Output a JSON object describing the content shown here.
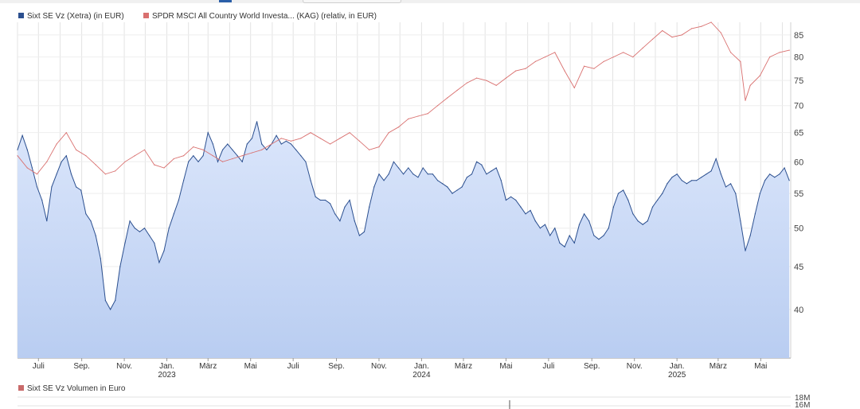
{
  "legend": {
    "series1": "Sixt SE Vz (Xetra) (in EUR)",
    "series2": "SPDR MSCI All Country World Investa... (KAG) (relativ, in EUR)",
    "volume": "Sixt SE Vz Volumen in Euro"
  },
  "colors": {
    "series1_line": "#2b4f8f",
    "series1_fill_top": "#bcd0f3",
    "series1_fill_bottom": "#dfe8fb",
    "series2_line": "#d9706f",
    "volume_swatch": "#c96a6a",
    "grid": "#e3e3e3"
  },
  "volume_axis": {
    "ticks": [
      "18M",
      "16M"
    ]
  },
  "chart_data": {
    "type": "line",
    "x_axis": {
      "month_labels": [
        "Juli",
        "Sep.",
        "Nov.",
        "Jan.",
        "März",
        "Mai",
        "Juli",
        "Sep.",
        "Nov.",
        "Jan.",
        "März",
        "Mai",
        "Juli",
        "Sep.",
        "Nov.",
        "Jan.",
        "März",
        "Mai"
      ],
      "year_labels": [
        "2023",
        "2024",
        "2025"
      ],
      "range": [
        "2022-06",
        "2025-06"
      ]
    },
    "y_axis": {
      "ticks": [
        40,
        45,
        50,
        55,
        60,
        65,
        70,
        75,
        80,
        85
      ],
      "ylim": [
        35,
        88
      ],
      "side": "right",
      "scale": "log"
    },
    "grid": true,
    "series": [
      {
        "name": "Sixt SE Vz (Xetra) (in EUR)",
        "style": "area",
        "points": [
          [
            "2022-06-01",
            62
          ],
          [
            "2022-06-08",
            64.5
          ],
          [
            "2022-06-15",
            62
          ],
          [
            "2022-06-22",
            59
          ],
          [
            "2022-06-29",
            56
          ],
          [
            "2022-07-06",
            54
          ],
          [
            "2022-07-13",
            51
          ],
          [
            "2022-07-20",
            56
          ],
          [
            "2022-07-27",
            58
          ],
          [
            "2022-08-03",
            60
          ],
          [
            "2022-08-10",
            61
          ],
          [
            "2022-08-17",
            58
          ],
          [
            "2022-08-24",
            56
          ],
          [
            "2022-08-31",
            55.5
          ],
          [
            "2022-09-07",
            52
          ],
          [
            "2022-09-14",
            51
          ],
          [
            "2022-09-21",
            49
          ],
          [
            "2022-09-28",
            46
          ],
          [
            "2022-10-05",
            41
          ],
          [
            "2022-10-12",
            40
          ],
          [
            "2022-10-19",
            41
          ],
          [
            "2022-10-26",
            45
          ],
          [
            "2022-11-02",
            48
          ],
          [
            "2022-11-09",
            51
          ],
          [
            "2022-11-16",
            50
          ],
          [
            "2022-11-23",
            49.5
          ],
          [
            "2022-11-30",
            50
          ],
          [
            "2022-12-07",
            49
          ],
          [
            "2022-12-14",
            48
          ],
          [
            "2022-12-21",
            45.5
          ],
          [
            "2022-12-28",
            47
          ],
          [
            "2023-01-04",
            50
          ],
          [
            "2023-01-11",
            52
          ],
          [
            "2023-01-18",
            54
          ],
          [
            "2023-01-25",
            57
          ],
          [
            "2023-02-01",
            60
          ],
          [
            "2023-02-08",
            61
          ],
          [
            "2023-02-15",
            60
          ],
          [
            "2023-02-22",
            61
          ],
          [
            "2023-03-01",
            65
          ],
          [
            "2023-03-08",
            63
          ],
          [
            "2023-03-15",
            60
          ],
          [
            "2023-03-22",
            62
          ],
          [
            "2023-03-29",
            63
          ],
          [
            "2023-04-05",
            62
          ],
          [
            "2023-04-12",
            61
          ],
          [
            "2023-04-19",
            60
          ],
          [
            "2023-04-26",
            63
          ],
          [
            "2023-05-03",
            64
          ],
          [
            "2023-05-10",
            67
          ],
          [
            "2023-05-17",
            63
          ],
          [
            "2023-05-24",
            62
          ],
          [
            "2023-05-31",
            63
          ],
          [
            "2023-06-07",
            64.5
          ],
          [
            "2023-06-14",
            63
          ],
          [
            "2023-06-21",
            63.5
          ],
          [
            "2023-06-28",
            63
          ],
          [
            "2023-07-05",
            62
          ],
          [
            "2023-07-12",
            61
          ],
          [
            "2023-07-19",
            60
          ],
          [
            "2023-07-26",
            57
          ],
          [
            "2023-08-02",
            54.5
          ],
          [
            "2023-08-09",
            54
          ],
          [
            "2023-08-16",
            54
          ],
          [
            "2023-08-23",
            53.5
          ],
          [
            "2023-08-30",
            52
          ],
          [
            "2023-09-06",
            51
          ],
          [
            "2023-09-13",
            53
          ],
          [
            "2023-09-20",
            54
          ],
          [
            "2023-09-27",
            51
          ],
          [
            "2023-10-04",
            49
          ],
          [
            "2023-10-11",
            49.5
          ],
          [
            "2023-10-18",
            53
          ],
          [
            "2023-10-25",
            56
          ],
          [
            "2023-11-01",
            58
          ],
          [
            "2023-11-08",
            57
          ],
          [
            "2023-11-15",
            58
          ],
          [
            "2023-11-22",
            60
          ],
          [
            "2023-11-29",
            59
          ],
          [
            "2023-12-06",
            58
          ],
          [
            "2023-12-13",
            59
          ],
          [
            "2023-12-20",
            58
          ],
          [
            "2023-12-27",
            57.5
          ],
          [
            "2024-01-03",
            59
          ],
          [
            "2024-01-10",
            58
          ],
          [
            "2024-01-17",
            58
          ],
          [
            "2024-01-24",
            57
          ],
          [
            "2024-01-31",
            56.5
          ],
          [
            "2024-02-07",
            56
          ],
          [
            "2024-02-14",
            55
          ],
          [
            "2024-02-21",
            55.5
          ],
          [
            "2024-02-28",
            56
          ],
          [
            "2024-03-06",
            57.5
          ],
          [
            "2024-03-13",
            58
          ],
          [
            "2024-03-20",
            60
          ],
          [
            "2024-03-27",
            59.5
          ],
          [
            "2024-04-03",
            58
          ],
          [
            "2024-04-10",
            58.5
          ],
          [
            "2024-04-17",
            59
          ],
          [
            "2024-04-24",
            57
          ],
          [
            "2024-05-01",
            54
          ],
          [
            "2024-05-08",
            54.5
          ],
          [
            "2024-05-15",
            54
          ],
          [
            "2024-05-22",
            53
          ],
          [
            "2024-05-29",
            52
          ],
          [
            "2024-06-05",
            52.5
          ],
          [
            "2024-06-12",
            51
          ],
          [
            "2024-06-19",
            50
          ],
          [
            "2024-06-26",
            50.5
          ],
          [
            "2024-07-03",
            49
          ],
          [
            "2024-07-10",
            50
          ],
          [
            "2024-07-17",
            48
          ],
          [
            "2024-07-24",
            47.5
          ],
          [
            "2024-07-31",
            49
          ],
          [
            "2024-08-07",
            48
          ],
          [
            "2024-08-14",
            50.5
          ],
          [
            "2024-08-21",
            52
          ],
          [
            "2024-08-28",
            51
          ],
          [
            "2024-09-04",
            49
          ],
          [
            "2024-09-11",
            48.5
          ],
          [
            "2024-09-18",
            49
          ],
          [
            "2024-09-25",
            50
          ],
          [
            "2024-10-02",
            53
          ],
          [
            "2024-10-09",
            55
          ],
          [
            "2024-10-16",
            55.5
          ],
          [
            "2024-10-23",
            54
          ],
          [
            "2024-10-30",
            52
          ],
          [
            "2024-11-06",
            51
          ],
          [
            "2024-11-13",
            50.5
          ],
          [
            "2024-11-20",
            51
          ],
          [
            "2024-11-27",
            53
          ],
          [
            "2024-12-04",
            54
          ],
          [
            "2024-12-11",
            55
          ],
          [
            "2024-12-18",
            56.5
          ],
          [
            "2024-12-25",
            57.5
          ],
          [
            "2025-01-01",
            58
          ],
          [
            "2025-01-08",
            57
          ],
          [
            "2025-01-15",
            56.5
          ],
          [
            "2025-01-22",
            57
          ],
          [
            "2025-01-29",
            57
          ],
          [
            "2025-02-05",
            57.5
          ],
          [
            "2025-02-12",
            58
          ],
          [
            "2025-02-19",
            58.5
          ],
          [
            "2025-02-26",
            60.5
          ],
          [
            "2025-03-05",
            58
          ],
          [
            "2025-03-12",
            56
          ],
          [
            "2025-03-19",
            56.5
          ],
          [
            "2025-03-26",
            55
          ],
          [
            "2025-04-02",
            51
          ],
          [
            "2025-04-09",
            47
          ],
          [
            "2025-04-16",
            49
          ],
          [
            "2025-04-23",
            52
          ],
          [
            "2025-04-30",
            55
          ],
          [
            "2025-05-07",
            57
          ],
          [
            "2025-05-14",
            58
          ],
          [
            "2025-05-21",
            57.5
          ],
          [
            "2025-05-28",
            58
          ],
          [
            "2025-06-04",
            59
          ],
          [
            "2025-06-11",
            57
          ]
        ]
      },
      {
        "name": "SPDR MSCI All Country World Investa... (KAG) (relativ, in EUR)",
        "style": "line",
        "points": [
          [
            "2022-06-01",
            61
          ],
          [
            "2022-06-15",
            59
          ],
          [
            "2022-06-29",
            58
          ],
          [
            "2022-07-13",
            60
          ],
          [
            "2022-07-27",
            63
          ],
          [
            "2022-08-10",
            65
          ],
          [
            "2022-08-24",
            62
          ],
          [
            "2022-09-07",
            61
          ],
          [
            "2022-09-21",
            59.5
          ],
          [
            "2022-10-05",
            58
          ],
          [
            "2022-10-19",
            58.5
          ],
          [
            "2022-11-02",
            60
          ],
          [
            "2022-11-16",
            61
          ],
          [
            "2022-11-30",
            62
          ],
          [
            "2022-12-14",
            59.5
          ],
          [
            "2022-12-28",
            59
          ],
          [
            "2023-01-11",
            60.5
          ],
          [
            "2023-01-25",
            61
          ],
          [
            "2023-02-08",
            62.5
          ],
          [
            "2023-02-22",
            62
          ],
          [
            "2023-03-08",
            61
          ],
          [
            "2023-03-22",
            60
          ],
          [
            "2023-04-05",
            60.5
          ],
          [
            "2023-04-19",
            61
          ],
          [
            "2023-05-03",
            61.5
          ],
          [
            "2023-05-17",
            62
          ],
          [
            "2023-05-31",
            63
          ],
          [
            "2023-06-14",
            64
          ],
          [
            "2023-06-28",
            63.5
          ],
          [
            "2023-07-12",
            64
          ],
          [
            "2023-07-26",
            65
          ],
          [
            "2023-08-09",
            64
          ],
          [
            "2023-08-23",
            63
          ],
          [
            "2023-09-06",
            64
          ],
          [
            "2023-09-20",
            65
          ],
          [
            "2023-10-04",
            63.5
          ],
          [
            "2023-10-18",
            62
          ],
          [
            "2023-11-01",
            62.5
          ],
          [
            "2023-11-15",
            65
          ],
          [
            "2023-11-29",
            66
          ],
          [
            "2023-12-13",
            67.5
          ],
          [
            "2023-12-27",
            68
          ],
          [
            "2024-01-10",
            68.5
          ],
          [
            "2024-01-24",
            70
          ],
          [
            "2024-02-07",
            71.5
          ],
          [
            "2024-02-21",
            73
          ],
          [
            "2024-03-06",
            74.5
          ],
          [
            "2024-03-20",
            75.5
          ],
          [
            "2024-04-03",
            75
          ],
          [
            "2024-04-17",
            74
          ],
          [
            "2024-05-01",
            75.5
          ],
          [
            "2024-05-15",
            77
          ],
          [
            "2024-05-29",
            77.5
          ],
          [
            "2024-06-12",
            79
          ],
          [
            "2024-06-26",
            80
          ],
          [
            "2024-07-10",
            81
          ],
          [
            "2024-07-24",
            77
          ],
          [
            "2024-08-07",
            73.5
          ],
          [
            "2024-08-21",
            78
          ],
          [
            "2024-09-04",
            77.5
          ],
          [
            "2024-09-18",
            79
          ],
          [
            "2024-10-02",
            80
          ],
          [
            "2024-10-16",
            81
          ],
          [
            "2024-10-30",
            80
          ],
          [
            "2024-11-13",
            82
          ],
          [
            "2024-11-27",
            84
          ],
          [
            "2024-12-11",
            86
          ],
          [
            "2024-12-25",
            84.5
          ],
          [
            "2025-01-08",
            85
          ],
          [
            "2025-01-22",
            86.5
          ],
          [
            "2025-02-05",
            87
          ],
          [
            "2025-02-19",
            88
          ],
          [
            "2025-03-05",
            85.5
          ],
          [
            "2025-03-19",
            81
          ],
          [
            "2025-04-02",
            79
          ],
          [
            "2025-04-09",
            71
          ],
          [
            "2025-04-16",
            74
          ],
          [
            "2025-04-30",
            76
          ],
          [
            "2025-05-14",
            80
          ],
          [
            "2025-05-28",
            81
          ],
          [
            "2025-06-11",
            81.5
          ]
        ]
      }
    ]
  }
}
